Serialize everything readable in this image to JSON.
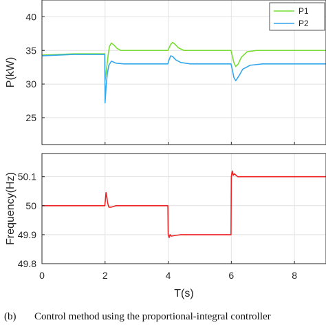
{
  "caption": {
    "label": "(b)",
    "text": "Control method using the proportional-integral controller"
  },
  "chart_data": [
    {
      "type": "line",
      "title": "",
      "xlabel": "",
      "ylabel": "P(kW)",
      "xlim": [
        0,
        9
      ],
      "ylim": [
        21,
        42.5
      ],
      "xticks": [
        0,
        2,
        4,
        6,
        8
      ],
      "show_xticklabels": false,
      "yticks": [
        25,
        30,
        35,
        40
      ],
      "grid": true,
      "legend": "top-right",
      "series": [
        {
          "name": "P1",
          "color": "#77dd33",
          "points": [
            [
              0,
              34.3
            ],
            [
              0.5,
              34.4
            ],
            [
              1,
              34.5
            ],
            [
              1.5,
              34.5
            ],
            [
              1.99,
              34.5
            ],
            [
              2.0,
              30.5
            ],
            [
              2.04,
              32.0
            ],
            [
              2.1,
              34.4
            ],
            [
              2.14,
              35.6
            ],
            [
              2.2,
              36.1
            ],
            [
              2.28,
              35.8
            ],
            [
              2.38,
              35.3
            ],
            [
              2.5,
              35.0
            ],
            [
              2.7,
              35.0
            ],
            [
              3.5,
              35.0
            ],
            [
              3.99,
              35.0
            ],
            [
              4.02,
              35.3
            ],
            [
              4.08,
              35.9
            ],
            [
              4.14,
              36.2
            ],
            [
              4.22,
              35.9
            ],
            [
              4.32,
              35.4
            ],
            [
              4.5,
              35.0
            ],
            [
              5,
              35.0
            ],
            [
              5.99,
              35.0
            ],
            [
              6.02,
              34.4
            ],
            [
              6.08,
              33.2
            ],
            [
              6.14,
              32.6
            ],
            [
              6.22,
              33.0
            ],
            [
              6.32,
              34.0
            ],
            [
              6.5,
              34.8
            ],
            [
              6.8,
              35.0
            ],
            [
              8,
              35.0
            ],
            [
              9,
              35.0
            ]
          ]
        },
        {
          "name": "P2",
          "color": "#33a6ee",
          "points": [
            [
              0,
              34.2
            ],
            [
              0.5,
              34.3
            ],
            [
              1,
              34.4
            ],
            [
              1.5,
              34.4
            ],
            [
              1.99,
              34.4
            ],
            [
              2.0,
              27.2
            ],
            [
              2.03,
              29.5
            ],
            [
              2.07,
              31.5
            ],
            [
              2.12,
              32.8
            ],
            [
              2.2,
              33.4
            ],
            [
              2.35,
              33.1
            ],
            [
              2.6,
              33.0
            ],
            [
              3.5,
              33.0
            ],
            [
              3.99,
              33.0
            ],
            [
              4.02,
              33.5
            ],
            [
              4.08,
              34.2
            ],
            [
              4.14,
              34.1
            ],
            [
              4.24,
              33.6
            ],
            [
              4.4,
              33.2
            ],
            [
              4.7,
              33.0
            ],
            [
              5.5,
              33.0
            ],
            [
              5.99,
              33.0
            ],
            [
              6.02,
              32.4
            ],
            [
              6.08,
              31.0
            ],
            [
              6.14,
              30.5
            ],
            [
              6.24,
              31.2
            ],
            [
              6.36,
              32.2
            ],
            [
              6.6,
              32.8
            ],
            [
              7,
              33.0
            ],
            [
              8,
              33.0
            ],
            [
              9,
              33.0
            ]
          ]
        }
      ]
    },
    {
      "type": "line",
      "title": "",
      "xlabel": "T(s)",
      "ylabel": "Frequency(Hz)",
      "xlim": [
        0,
        9
      ],
      "ylim": [
        49.8,
        50.18
      ],
      "xticks": [
        0,
        2,
        4,
        6,
        8
      ],
      "yticks": [
        49.8,
        49.9,
        50,
        50.1
      ],
      "grid": true,
      "legend": "none",
      "series": [
        {
          "color": "#ee2222",
          "points": [
            [
              0,
              50.0
            ],
            [
              1,
              50.0
            ],
            [
              1.99,
              50.0
            ],
            [
              2.01,
              50.02
            ],
            [
              2.03,
              50.045
            ],
            [
              2.05,
              50.035
            ],
            [
              2.08,
              50.01
            ],
            [
              2.12,
              49.995
            ],
            [
              2.2,
              49.995
            ],
            [
              2.35,
              50.0
            ],
            [
              3,
              50.0
            ],
            [
              3.99,
              50.0
            ],
            [
              4.0,
              49.9
            ],
            [
              4.03,
              49.89
            ],
            [
              4.06,
              49.9
            ],
            [
              4.1,
              49.895
            ],
            [
              4.2,
              49.897
            ],
            [
              4.4,
              49.9
            ],
            [
              5,
              49.9
            ],
            [
              5.99,
              49.9
            ],
            [
              6.0,
              50.1
            ],
            [
              6.03,
              50.12
            ],
            [
              6.06,
              50.105
            ],
            [
              6.1,
              50.11
            ],
            [
              6.2,
              50.1
            ],
            [
              6.4,
              50.1
            ],
            [
              7,
              50.1
            ],
            [
              9,
              50.1
            ]
          ]
        }
      ]
    }
  ]
}
